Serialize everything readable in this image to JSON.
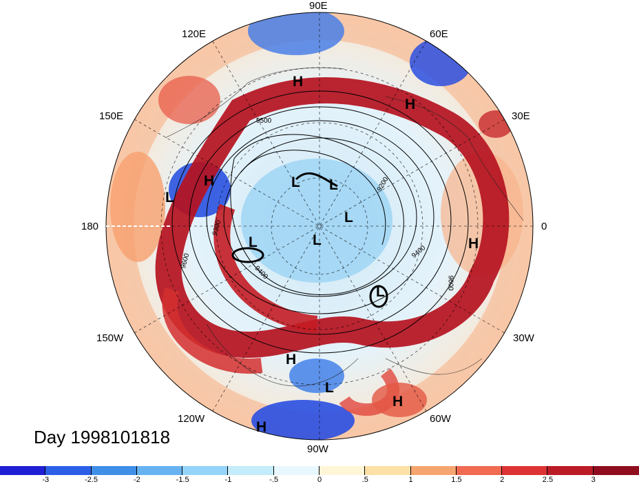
{
  "title": "Day 1998101818",
  "longitude_labels": {
    "e90": "90E",
    "e120": "120E",
    "e60": "60E",
    "e150": "150E",
    "e30": "30E",
    "d180": "180",
    "d0": "0",
    "w150": "150W",
    "w30": "30W",
    "w120": "120W",
    "w60": "60W",
    "w90": "90W"
  },
  "pressure_centers": {
    "h1": "H",
    "h2": "H",
    "h3": "H",
    "h4": "H",
    "h5": "H",
    "h6": "H",
    "h7": "H",
    "l1": "L",
    "l2": "L",
    "l3": "L",
    "l4": "L",
    "l5": "L",
    "l6": "L",
    "l7": "L",
    "l8": "L"
  },
  "contour_labels": {
    "c1": "9500",
    "c2": "9200",
    "c3": "9400",
    "c4": "9600",
    "c5": "9400",
    "c6": "9600",
    "c7": "9300"
  },
  "colorbar": {
    "ticks": [
      "-3",
      "-2.5",
      "-2",
      "-1.5",
      "-1",
      "-.5",
      "0",
      ".5",
      "1",
      "1.5",
      "2",
      "2.5",
      "3"
    ],
    "colors": [
      "#1f1fd6",
      "#2b5fe8",
      "#3f8ee8",
      "#67b3f2",
      "#93d4f8",
      "#c5ecfb",
      "#e9f8ff",
      "#fff6d8",
      "#fde0a6",
      "#f7a570",
      "#f16a52",
      "#dd3335",
      "#bb1a27",
      "#8f0d1e"
    ]
  }
}
